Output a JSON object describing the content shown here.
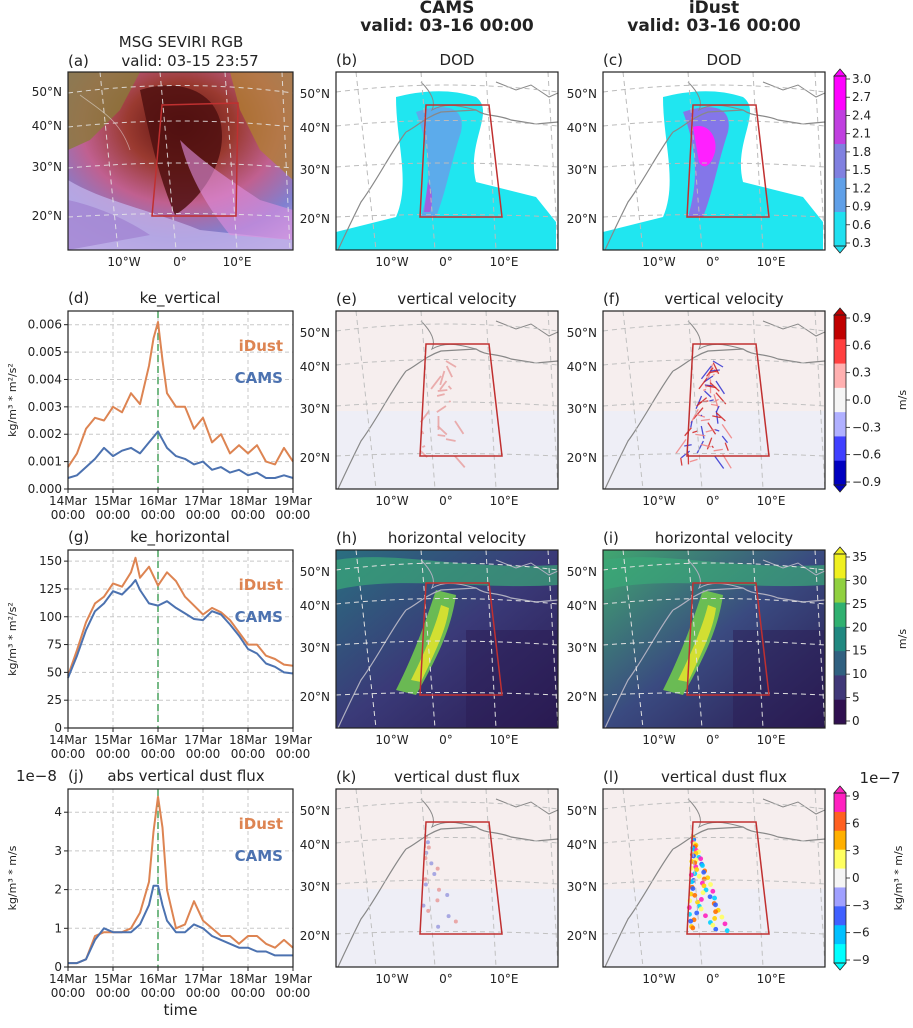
{
  "column_headers": [
    {
      "name": "CAMS",
      "valid": "valid: 03-16 00:00"
    },
    {
      "name": "iDust",
      "valid": "valid: 03-16 00:00"
    }
  ],
  "maps": {
    "lat_labels": [
      "50°N",
      "40°N",
      "30°N",
      "20°N"
    ],
    "lon_labels": [
      "10°W",
      "0°",
      "10°E"
    ],
    "panel_a": {
      "label": "(a)",
      "title": "MSG SEVIRI RGB",
      "subtitle": "valid: 03-15 23:57"
    },
    "panel_b": {
      "label": "(b)",
      "title": "DOD"
    },
    "panel_c": {
      "label": "(c)",
      "title": "DOD"
    },
    "panel_e": {
      "label": "(e)",
      "title": "vertical velocity"
    },
    "panel_f": {
      "label": "(f)",
      "title": "vertical velocity"
    },
    "panel_h": {
      "label": "(h)",
      "title": "horizontal velocity"
    },
    "panel_i": {
      "label": "(i)",
      "title": "horizontal velocity"
    },
    "panel_k": {
      "label": "(k)",
      "title": "vertical dust flux"
    },
    "panel_l": {
      "label": "(l)",
      "title": "vertical dust flux"
    }
  },
  "colorbars": [
    {
      "id": "dod",
      "ticks": [
        "3.0",
        "2.7",
        "2.4",
        "2.1",
        "1.8",
        "1.5",
        "1.2",
        "0.9",
        "0.6",
        "0.3"
      ],
      "unit": "",
      "colors": [
        "#ff00ff",
        "#c040e0",
        "#8080e0",
        "#60a0e8",
        "#20e0f0"
      ]
    },
    {
      "id": "w",
      "ticks": [
        "0.9",
        "0.6",
        "0.3",
        "0.0",
        "−0.3",
        "−0.6",
        "−0.9"
      ],
      "unit": "m/s",
      "colors": [
        "#c00000",
        "#ff4040",
        "#ffb0b0",
        "#f5f5f5",
        "#b0b0ff",
        "#4040ff",
        "#0000c0"
      ]
    },
    {
      "id": "hv",
      "ticks": [
        "35",
        "30",
        "25",
        "20",
        "15",
        "10",
        "5",
        "0"
      ],
      "unit": "m/s",
      "colors": [
        "#f0f020",
        "#90d040",
        "#30b070",
        "#208880",
        "#306080",
        "#403878",
        "#301050"
      ]
    },
    {
      "id": "flux",
      "ticks": [
        "9",
        "6",
        "3",
        "0",
        "−3",
        "−6",
        "−9"
      ],
      "unit": "kg/m³ * m/s",
      "exponent": "1e−7",
      "colors": [
        "#ff20c0",
        "#ff6020",
        "#ffb000",
        "#ffff60",
        "#f5f5f5",
        "#a0a0ff",
        "#4060ff",
        "#00c0ff",
        "#00ffff"
      ]
    }
  ],
  "chart_data": [
    {
      "type": "line",
      "panel": "(d)",
      "title": "ke_vertical",
      "ylabel": "kg/m³ * m²/s²",
      "x_tick_labels": [
        "14Mar\n00:00",
        "15Mar\n00:00",
        "16Mar\n00:00",
        "17Mar\n00:00",
        "18Mar\n00:00",
        "19Mar\n00:00"
      ],
      "xlim": [
        0,
        5
      ],
      "ylim": [
        0,
        0.0065
      ],
      "y_ticks": [
        0.0,
        0.001,
        0.002,
        0.003,
        0.004,
        0.005,
        0.006
      ],
      "y_tick_labels": [
        "0.000",
        "0.001",
        "0.002",
        "0.003",
        "0.004",
        "0.005",
        "0.006"
      ],
      "vline": 2,
      "series": [
        {
          "name": "iDust",
          "color": "#dd8452",
          "x": [
            0,
            0.2,
            0.4,
            0.6,
            0.8,
            1.0,
            1.2,
            1.4,
            1.6,
            1.8,
            1.9,
            2.0,
            2.1,
            2.2,
            2.4,
            2.6,
            2.8,
            3.0,
            3.2,
            3.4,
            3.6,
            3.8,
            4.0,
            4.2,
            4.4,
            4.6,
            4.8,
            5.0
          ],
          "y": [
            0.0008,
            0.0013,
            0.0022,
            0.0026,
            0.0025,
            0.003,
            0.0028,
            0.0035,
            0.0031,
            0.0045,
            0.0055,
            0.0061,
            0.0047,
            0.0035,
            0.003,
            0.003,
            0.0022,
            0.0026,
            0.0017,
            0.002,
            0.0013,
            0.0016,
            0.0013,
            0.0016,
            0.001,
            0.0009,
            0.0015,
            0.001
          ]
        },
        {
          "name": "CAMS",
          "color": "#4c72b0",
          "x": [
            0,
            0.2,
            0.4,
            0.6,
            0.8,
            1.0,
            1.2,
            1.4,
            1.6,
            1.8,
            1.9,
            2.0,
            2.1,
            2.2,
            2.4,
            2.6,
            2.8,
            3.0,
            3.2,
            3.4,
            3.6,
            3.8,
            4.0,
            4.2,
            4.4,
            4.6,
            4.8,
            5.0
          ],
          "y": [
            0.0004,
            0.0005,
            0.0008,
            0.0011,
            0.0015,
            0.0012,
            0.0014,
            0.0015,
            0.0013,
            0.0017,
            0.0019,
            0.0021,
            0.0018,
            0.0015,
            0.0012,
            0.0011,
            0.0009,
            0.001,
            0.0007,
            0.0008,
            0.0006,
            0.0007,
            0.0005,
            0.0006,
            0.0004,
            0.0004,
            0.0005,
            0.0004
          ]
        }
      ]
    },
    {
      "type": "line",
      "panel": "(g)",
      "title": "ke_horizontal",
      "ylabel": "kg/m³ * m²/s²",
      "x_tick_labels": [
        "14Mar\n00:00",
        "15Mar\n00:00",
        "16Mar\n00:00",
        "17Mar\n00:00",
        "18Mar\n00:00",
        "19Mar\n00:00"
      ],
      "xlim": [
        0,
        5
      ],
      "ylim": [
        0,
        160
      ],
      "y_ticks": [
        0,
        25,
        50,
        75,
        100,
        125,
        150
      ],
      "y_tick_labels": [
        "0",
        "25",
        "50",
        "75",
        "100",
        "125",
        "150"
      ],
      "vline": 2,
      "series": [
        {
          "name": "iDust",
          "color": "#dd8452",
          "x": [
            0,
            0.2,
            0.4,
            0.6,
            0.8,
            1.0,
            1.2,
            1.4,
            1.5,
            1.6,
            1.8,
            2.0,
            2.2,
            2.4,
            2.6,
            2.8,
            3.0,
            3.2,
            3.4,
            3.6,
            3.8,
            4.0,
            4.2,
            4.4,
            4.6,
            4.8,
            5.0
          ],
          "y": [
            47,
            70,
            95,
            112,
            118,
            130,
            127,
            140,
            153,
            135,
            145,
            128,
            140,
            132,
            118,
            110,
            102,
            108,
            104,
            97,
            86,
            75,
            75,
            65,
            62,
            57,
            56
          ]
        },
        {
          "name": "CAMS",
          "color": "#4c72b0",
          "x": [
            0,
            0.2,
            0.4,
            0.6,
            0.8,
            1.0,
            1.2,
            1.4,
            1.5,
            1.6,
            1.8,
            2.0,
            2.2,
            2.4,
            2.6,
            2.8,
            3.0,
            3.2,
            3.4,
            3.6,
            3.8,
            4.0,
            4.2,
            4.4,
            4.6,
            4.8,
            5.0
          ],
          "y": [
            45,
            65,
            88,
            105,
            112,
            123,
            120,
            128,
            133,
            124,
            112,
            110,
            114,
            108,
            103,
            98,
            97,
            105,
            102,
            93,
            83,
            71,
            67,
            58,
            55,
            50,
            49
          ]
        }
      ]
    },
    {
      "type": "line",
      "panel": "(j)",
      "title": "abs vertical dust flux",
      "exponent": "1e−8",
      "ylabel": "kg/m³ * m/s",
      "xlabel": "time",
      "x_tick_labels": [
        "14Mar\n00:00",
        "15Mar\n00:00",
        "16Mar\n00:00",
        "17Mar\n00:00",
        "18Mar\n00:00",
        "19Mar\n00:00"
      ],
      "xlim": [
        0,
        5
      ],
      "ylim": [
        0,
        4.6
      ],
      "y_ticks": [
        0,
        1,
        2,
        3,
        4
      ],
      "y_tick_labels": [
        "0",
        "1",
        "2",
        "3",
        "4"
      ],
      "vline": 2,
      "series": [
        {
          "name": "iDust",
          "color": "#dd8452",
          "x": [
            0,
            0.2,
            0.4,
            0.6,
            0.8,
            1.0,
            1.2,
            1.4,
            1.6,
            1.8,
            1.9,
            2.0,
            2.1,
            2.2,
            2.4,
            2.6,
            2.8,
            3.0,
            3.2,
            3.4,
            3.6,
            3.8,
            4.0,
            4.2,
            4.4,
            4.6,
            4.8,
            5.0
          ],
          "y": [
            0.1,
            0.1,
            0.2,
            0.8,
            0.9,
            0.9,
            0.9,
            1.0,
            1.4,
            2.2,
            3.5,
            4.4,
            3.6,
            2.0,
            1.0,
            1.1,
            1.7,
            1.2,
            1.0,
            0.8,
            0.8,
            0.6,
            0.8,
            0.8,
            0.6,
            0.5,
            0.7,
            0.5
          ]
        },
        {
          "name": "CAMS",
          "color": "#4c72b0",
          "x": [
            0,
            0.2,
            0.4,
            0.6,
            0.8,
            1.0,
            1.2,
            1.4,
            1.6,
            1.8,
            1.9,
            2.0,
            2.1,
            2.2,
            2.4,
            2.6,
            2.8,
            3.0,
            3.2,
            3.4,
            3.6,
            3.8,
            4.0,
            4.2,
            4.4,
            4.6,
            4.8,
            5.0
          ],
          "y": [
            0.1,
            0.1,
            0.2,
            0.7,
            1.0,
            0.9,
            0.9,
            0.9,
            1.1,
            1.6,
            2.1,
            2.1,
            1.6,
            1.2,
            0.9,
            0.9,
            1.1,
            1.0,
            0.8,
            0.7,
            0.6,
            0.5,
            0.5,
            0.4,
            0.4,
            0.3,
            0.3,
            0.3
          ]
        }
      ]
    }
  ]
}
